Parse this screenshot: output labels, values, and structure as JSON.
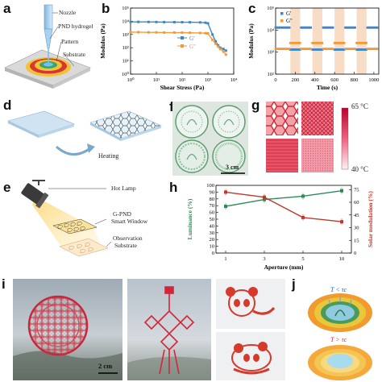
{
  "panel_labels": {
    "a": "a",
    "b": "b",
    "c": "c",
    "d": "d",
    "e": "e",
    "f": "f",
    "g": "g",
    "h": "h",
    "i": "i",
    "j": "j"
  },
  "panel_a": {
    "nozzle": "Nozzle",
    "hydrogel": "PND hydrogel",
    "pattern": "Pattern",
    "substrate": "Substrate"
  },
  "panel_d": {
    "heating": "Heating"
  },
  "panel_e": {
    "hot_lamp": "Hot Lamp",
    "window_line1": "G-PND",
    "window_line2": "Smart Window",
    "obs_line1": "Observation",
    "obs_line2": "Substrate"
  },
  "panel_f": {
    "scale": "3 cm"
  },
  "panel_g": {
    "temp_high": "65 °C",
    "temp_low": "40 °C",
    "colors": {
      "high": "#c0002a",
      "low": "#fff0f0"
    }
  },
  "panel_i": {
    "scale": "2 cm"
  },
  "panel_j": {
    "top_label": "T < τc",
    "bottom_label": "T > τc"
  },
  "chart_data": [
    {
      "id": "b",
      "type": "line",
      "xlabel": "Shear Stress (Pa)",
      "ylabel": "Modulus (Pa)",
      "xscale": "log",
      "yscale": "log",
      "xlim": [
        1,
        10000
      ],
      "ylim": [
        1,
        100000
      ],
      "xticks": [
        "10⁰",
        "10¹",
        "10²",
        "10³",
        "10⁴"
      ],
      "yticks": [
        "10⁰",
        "10¹",
        "10²",
        "10³",
        "10⁴",
        "10⁵"
      ],
      "series": [
        {
          "name": "G'",
          "color": "#3f86c9",
          "x": [
            1,
            2,
            5,
            10,
            20,
            50,
            100,
            200,
            500,
            800,
            1000,
            1500,
            2000,
            2500,
            3000,
            4000,
            5000
          ],
          "y": [
            9000,
            9000,
            8900,
            8800,
            8700,
            8600,
            8500,
            8400,
            8200,
            7800,
            7000,
            1000,
            300,
            150,
            100,
            80,
            60
          ]
        },
        {
          "name": "G''",
          "color": "#f29a3a",
          "x": [
            1,
            2,
            5,
            10,
            20,
            50,
            100,
            200,
            500,
            800,
            1000,
            1500,
            2000,
            2500,
            3000,
            4000,
            5000
          ],
          "y": [
            1500,
            1500,
            1450,
            1450,
            1400,
            1400,
            1380,
            1350,
            1300,
            1250,
            1200,
            400,
            200,
            120,
            80,
            50,
            30
          ]
        }
      ]
    },
    {
      "id": "c",
      "type": "scatter",
      "xlabel": "Time (s)",
      "ylabel": "Modulus (Pa)",
      "yscale": "log",
      "xlim": [
        0,
        1050
      ],
      "ylim": [
        100,
        100000
      ],
      "xticks": [
        "0",
        "200",
        "400",
        "600",
        "800",
        "1000"
      ],
      "yticks": [
        "10²",
        "10³",
        "10⁴",
        "10⁵"
      ],
      "shaded": [
        [
          150,
          250
        ],
        [
          375,
          475
        ],
        [
          600,
          700
        ],
        [
          825,
          925
        ]
      ],
      "series": [
        {
          "name": "G'",
          "color": "#3f86c9",
          "segments": [
            [
              0,
              140,
              13000
            ],
            [
              150,
              250,
              1300
            ],
            [
              260,
              365,
              13000
            ],
            [
              375,
              475,
              1300
            ],
            [
              485,
              590,
              13000
            ],
            [
              600,
              700,
              1300
            ],
            [
              710,
              815,
              13000
            ],
            [
              825,
              925,
              1300
            ],
            [
              935,
              1040,
              13000
            ]
          ]
        },
        {
          "name": "G''",
          "color": "#f29a3a",
          "segments": [
            [
              0,
              140,
              1400
            ],
            [
              150,
              250,
              2600
            ],
            [
              260,
              365,
              1400
            ],
            [
              375,
              475,
              2600
            ],
            [
              485,
              590,
              1400
            ],
            [
              600,
              700,
              2600
            ],
            [
              710,
              815,
              1400
            ],
            [
              825,
              925,
              2600
            ],
            [
              935,
              1040,
              1400
            ]
          ]
        }
      ]
    },
    {
      "id": "h",
      "type": "line",
      "xlabel": "Aperture (mm)",
      "ylabel": "Luminance (%)",
      "ylabel_right": "Solar modulation (%)",
      "categories": [
        "1",
        "3",
        "5",
        "10"
      ],
      "ylim": [
        0,
        100
      ],
      "yticks": [
        "0",
        "10",
        "20",
        "30",
        "40",
        "50",
        "60",
        "70",
        "80",
        "90",
        "100"
      ],
      "ylim_right": [
        0,
        80
      ],
      "yticks_right": [
        "0",
        "15",
        "30",
        "45",
        "60",
        "75"
      ],
      "series": [
        {
          "name": "Luminance",
          "color": "#2e8b57",
          "axis": "left",
          "values": [
            69,
            79,
            84,
            92
          ]
        },
        {
          "name": "Solar modulation",
          "color": "#c0392b",
          "axis": "right",
          "values": [
            72,
            66,
            42,
            37
          ]
        }
      ]
    }
  ]
}
